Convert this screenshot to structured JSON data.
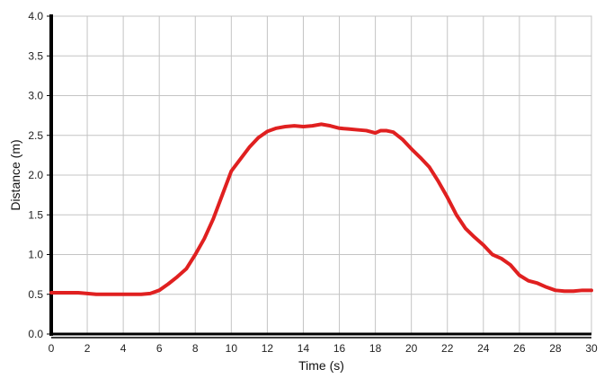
{
  "chart_data": {
    "type": "line",
    "title": "",
    "xlabel": "Time (s)",
    "ylabel": "Distance (m)",
    "xlim": [
      0,
      30
    ],
    "ylim": [
      0,
      4.0
    ],
    "x_ticks": [
      0,
      2,
      4,
      6,
      8,
      10,
      12,
      14,
      16,
      18,
      20,
      22,
      24,
      26,
      28,
      30
    ],
    "y_ticks": [
      0.0,
      0.5,
      1.0,
      1.5,
      2.0,
      2.5,
      3.0,
      3.5,
      4.0
    ],
    "x_tick_labels": [
      "0",
      "2",
      "4",
      "6",
      "8",
      "10",
      "12",
      "14",
      "16",
      "18",
      "20",
      "22",
      "24",
      "26",
      "28",
      "30"
    ],
    "y_tick_labels": [
      "0.0",
      "0.5",
      "1.0",
      "1.5",
      "2.0",
      "2.5",
      "3.0",
      "3.5",
      "4.0"
    ],
    "grid": true,
    "line_color": "#e02020",
    "series": [
      {
        "x": [
          0,
          0.5,
          1,
          1.5,
          2,
          2.5,
          3,
          3.5,
          4,
          4.5,
          5,
          5.5,
          6,
          6.5,
          7,
          7.5,
          8,
          8.5,
          9,
          9.5,
          10,
          10.5,
          11,
          11.5,
          12,
          12.5,
          13,
          13.5,
          14,
          14.5,
          15,
          15.5,
          16,
          16.5,
          17,
          17.5,
          18,
          18.3,
          18.6,
          19,
          19.5,
          20,
          20.5,
          21,
          21.5,
          22,
          22.5,
          23,
          23.5,
          24,
          24.5,
          25,
          25.5,
          26,
          26.5,
          27,
          27.5,
          28,
          28.5,
          29,
          29.5,
          30
        ],
        "y": [
          0.52,
          0.52,
          0.52,
          0.52,
          0.51,
          0.5,
          0.5,
          0.5,
          0.5,
          0.5,
          0.5,
          0.51,
          0.55,
          0.63,
          0.72,
          0.82,
          1.0,
          1.2,
          1.45,
          1.75,
          2.05,
          2.2,
          2.35,
          2.47,
          2.55,
          2.59,
          2.61,
          2.62,
          2.61,
          2.62,
          2.64,
          2.62,
          2.59,
          2.58,
          2.57,
          2.56,
          2.53,
          2.56,
          2.56,
          2.54,
          2.45,
          2.33,
          2.22,
          2.1,
          1.92,
          1.72,
          1.5,
          1.33,
          1.22,
          1.12,
          1.0,
          0.95,
          0.87,
          0.74,
          0.67,
          0.64,
          0.59,
          0.55,
          0.54,
          0.54,
          0.55,
          0.55
        ]
      }
    ]
  }
}
